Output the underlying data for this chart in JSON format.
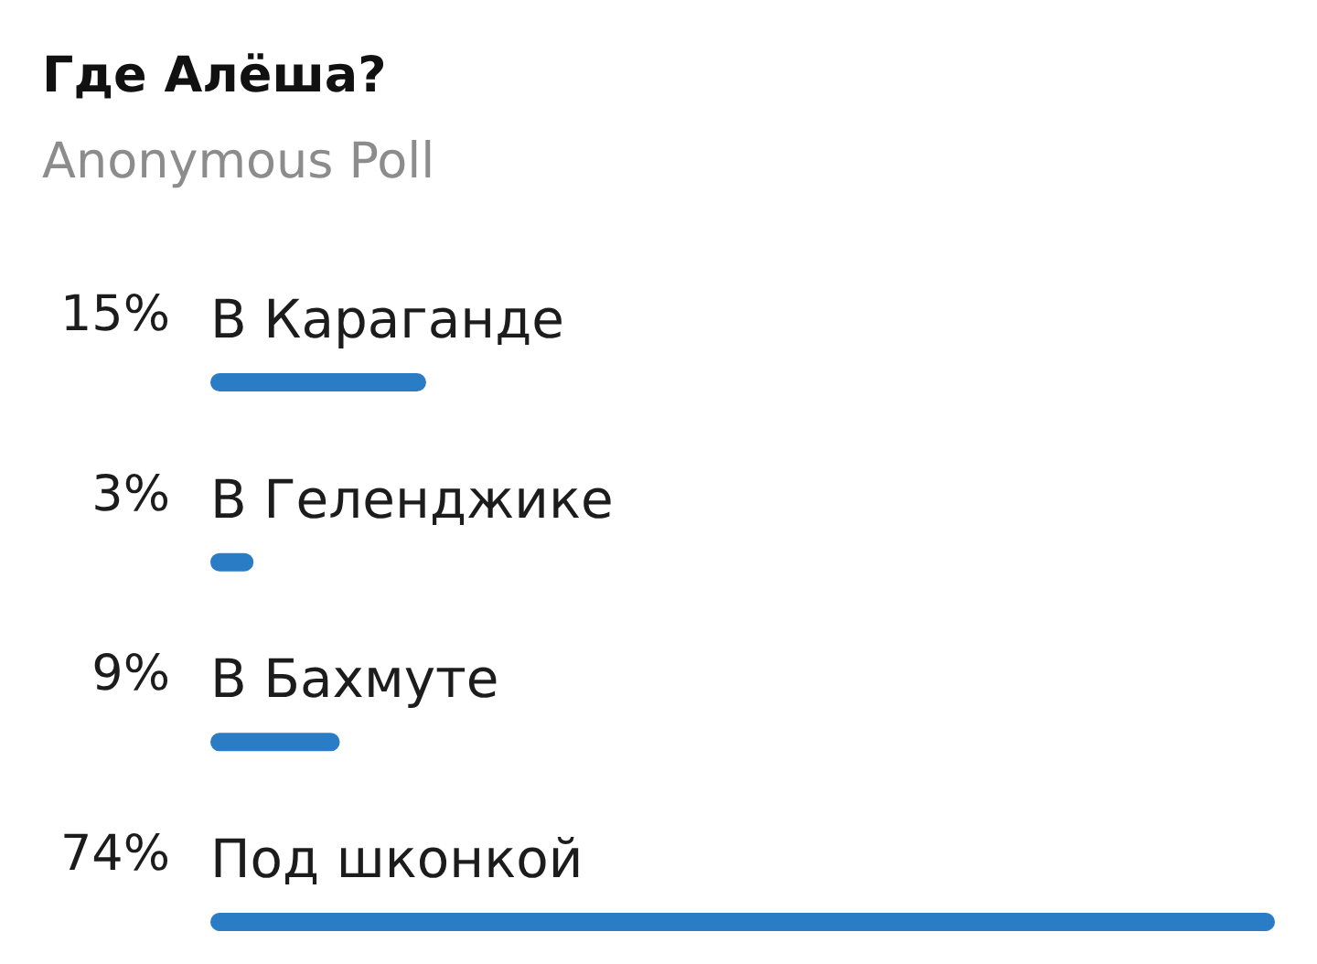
{
  "chart_data": {
    "type": "bar",
    "orientation": "horizontal",
    "title": "Где Алёша?",
    "subtitle": "Anonymous Poll",
    "categories": [
      "В Караганде",
      "В Геленджике",
      "В Бахмуте",
      "Под шконкой"
    ],
    "values": [
      15,
      3,
      9,
      74
    ],
    "value_labels": [
      "15%",
      "3%",
      "9%",
      "74%"
    ],
    "color": "#2a7dc4"
  }
}
